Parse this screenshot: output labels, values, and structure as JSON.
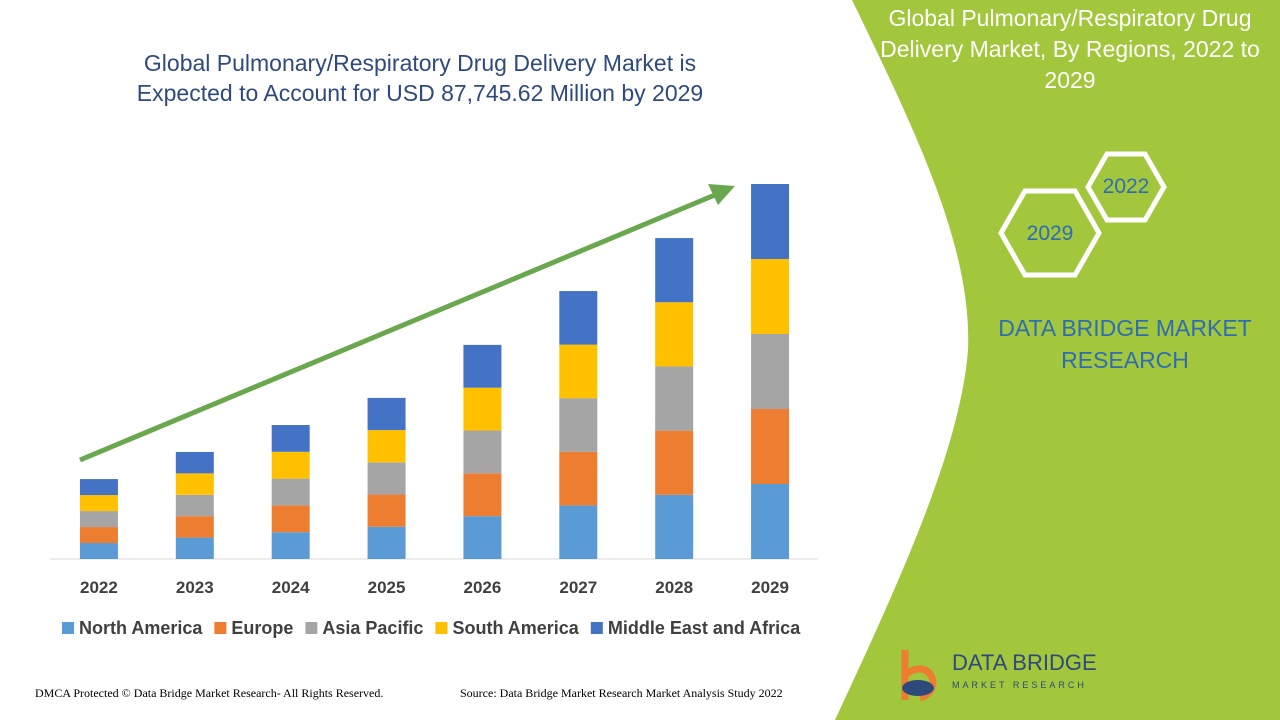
{
  "chart_data": {
    "type": "stacked-bar",
    "title": "Global Pulmonary/Respiratory Drug Delivery Market is Expected to Account for USD 87,745.62 Million by 2029",
    "categories": [
      "2022",
      "2023",
      "2024",
      "2025",
      "2026",
      "2027",
      "2028",
      "2029"
    ],
    "series": [
      {
        "name": "North America",
        "color": "#5b9bd5",
        "values": [
          3740,
          5010,
          6270,
          7540,
          10020,
          12540,
          15020,
          17550
        ]
      },
      {
        "name": "Europe",
        "color": "#ed7d31",
        "values": [
          3740,
          5010,
          6270,
          7540,
          10020,
          12540,
          15020,
          17550
        ]
      },
      {
        "name": "Asia Pacific",
        "color": "#a5a5a5",
        "values": [
          3740,
          5010,
          6270,
          7540,
          10020,
          12540,
          15020,
          17550
        ]
      },
      {
        "name": "South America",
        "color": "#ffc000",
        "values": [
          3740,
          5010,
          6270,
          7540,
          10020,
          12540,
          15020,
          17550
        ]
      },
      {
        "name": "Middle East and Africa",
        "color": "#4472c4",
        "values": [
          3740,
          5010,
          6270,
          7540,
          10020,
          12540,
          15020,
          17550
        ]
      }
    ],
    "legend": "bottom"
  },
  "panel": {
    "title": "Global Pulmonary/Respiratory Drug Delivery Market, By Regions, 2022 to 2029",
    "hexagons": [
      "2022",
      "2029"
    ],
    "brand": "DATA BRIDGE MARKET RESEARCH",
    "logo": {
      "name": "DATA BRIDGE",
      "tagline": "MARKET RESEARCH"
    }
  },
  "footer": {
    "left": "DMCA Protected © Data Bridge Market Research- All Rights Reserved.",
    "right": "Source: Data Bridge Market Research Market Analysis Study 2022"
  }
}
